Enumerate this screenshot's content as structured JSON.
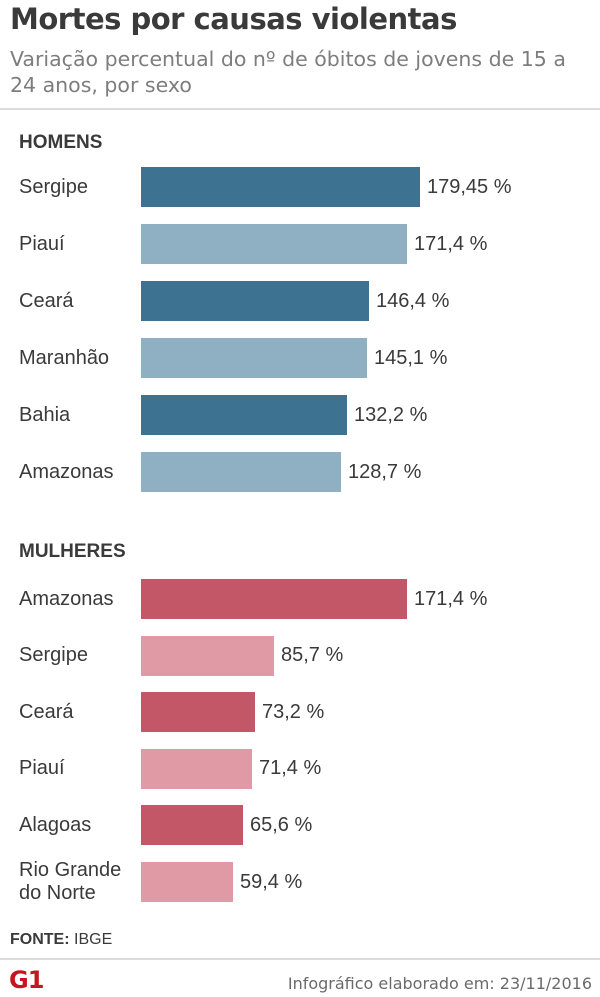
{
  "header": {
    "title": "Mortes por causas violentas",
    "subtitle": "Variação percentual do nº de óbitos de jovens de 15 a 24 anos, por sexo"
  },
  "chart_data": [
    {
      "type": "bar",
      "orientation": "horizontal",
      "section_label": "HOMENS",
      "categories": [
        "Sergipe",
        "Piauí",
        "Ceará",
        "Maranhão",
        "Bahia",
        "Amazonas"
      ],
      "values": [
        179.45,
        171.4,
        146.4,
        145.1,
        132.2,
        128.7
      ],
      "value_labels": [
        "179,45 %",
        "171,4 %",
        "146,4 %",
        "145,1 %",
        "132,2 %",
        "128,7 %"
      ],
      "colors": [
        "#3d7390",
        "#8fb0c2",
        "#3d7390",
        "#8fb0c2",
        "#3d7390",
        "#8fb0c2"
      ]
    },
    {
      "type": "bar",
      "orientation": "horizontal",
      "section_label": "MULHERES",
      "categories": [
        "Amazonas",
        "Sergipe",
        "Ceará",
        "Piauí",
        "Alagoas",
        "Rio Grande do Norte"
      ],
      "values": [
        171.4,
        85.7,
        73.2,
        71.4,
        65.6,
        59.4
      ],
      "value_labels": [
        "171,4 %",
        "85,7 %",
        "73,2 %",
        "71,4 %",
        "65,6 %",
        "59,4 %"
      ],
      "colors": [
        "#c35768",
        "#e09aa6",
        "#c35768",
        "#e09aa6",
        "#c35768",
        "#e09aa6"
      ]
    }
  ],
  "footer": {
    "source_label": "FONTE:",
    "source_value": "IBGE",
    "logo_text": "G1",
    "credit": "Infográfico elaborado em: 23/11/2016"
  }
}
